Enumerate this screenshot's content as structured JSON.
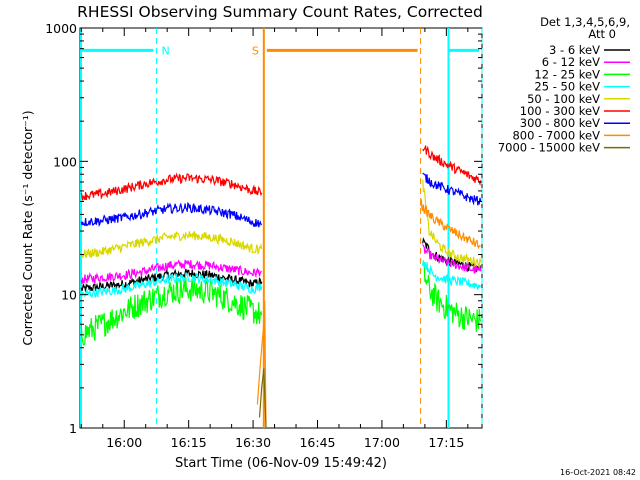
{
  "chart_data": {
    "type": "line",
    "title": "RHESSI Observing Summary Count Rates, Corrected",
    "xlabel": "Start Time (06-Nov-09 15:49:42)",
    "ylabel": "Corrected Count Rate (s⁻¹ detector⁻¹)",
    "x_ticks": [
      "16:00",
      "16:15",
      "16:30",
      "16:45",
      "17:00",
      "17:15"
    ],
    "x_tick_minutes": [
      0,
      15,
      30,
      45,
      60,
      75
    ],
    "x_range_minutes": [
      -10.3,
      83.3
    ],
    "y_scale": "log",
    "ylim": [
      1,
      1000
    ],
    "y_ticks": [
      1,
      10,
      100,
      1000
    ],
    "y_tick_labels": [
      "1",
      "10",
      "100",
      "1000"
    ],
    "legend_header": [
      "Det 1,3,4,5,6,9,",
      "Att 0"
    ],
    "legend_position": "right, outside plot",
    "footer_date": "16-Oct-2021 08:42",
    "annotations": [
      {
        "label": "N",
        "type": "night",
        "color": "#00ffff",
        "intervals_minutes": [
          [
            -10.3,
            7.5
          ],
          [
            75.5,
            83.3
          ]
        ],
        "level": 680
      },
      {
        "label": "S",
        "type": "saa",
        "color": "#ff8c00",
        "intervals_minutes": [
          [
            32.5,
            69.0
          ]
        ],
        "level": 680
      }
    ],
    "series": [
      {
        "name": "3 - 6 keV",
        "color": "#000000",
        "segments": [
          {
            "x": [
              -10,
              -5,
              0,
              5,
              10,
              15,
              20,
              25,
              30,
              32
            ],
            "y": [
              11,
              11.5,
              12,
              13,
              14,
              14.5,
              14,
              13,
              12,
              12.5
            ]
          },
          {
            "x": [
              69.5,
              72,
              75,
              78,
              81,
              83
            ],
            "y": [
              25,
              20,
              18,
              17,
              16,
              15.5
            ]
          }
        ]
      },
      {
        "name": "6 - 12 keV",
        "color": "#ff00ff",
        "segments": [
          {
            "x": [
              -10,
              -5,
              0,
              5,
              10,
              15,
              20,
              25,
              30,
              32
            ],
            "y": [
              13,
              13.5,
              14,
              15,
              16.5,
              17,
              16.5,
              15.5,
              14.5,
              15
            ]
          },
          {
            "x": [
              69.5,
              72,
              75,
              78,
              81,
              83
            ],
            "y": [
              22,
              19,
              17.5,
              16.5,
              15.5,
              15
            ]
          }
        ]
      },
      {
        "name": "12 - 25 keV",
        "color": "#00ff00",
        "segments": [
          {
            "x": [
              -10,
              -5,
              0,
              5,
              10,
              15,
              20,
              25,
              30,
              32
            ],
            "y": [
              5,
              6,
              7.5,
              9,
              10.5,
              11,
              10.5,
              9,
              7.5,
              7
            ]
          },
          {
            "x": [
              69.5,
              71,
              73,
              75,
              78,
              81,
              83
            ],
            "y": [
              15,
              11,
              9,
              8,
              7,
              6.5,
              6.3
            ]
          }
        ]
      },
      {
        "name": "25 - 50 keV",
        "color": "#00ffff",
        "segments": [
          {
            "x": [
              -10,
              -5,
              0,
              5,
              10,
              15,
              20,
              25,
              30,
              32
            ],
            "y": [
              10,
              10.5,
              11,
              12,
              13,
              13.5,
              13,
              12,
              11,
              11.5
            ]
          },
          {
            "x": [
              69.5,
              72,
              75,
              78,
              81,
              83
            ],
            "y": [
              18,
              14,
              13,
              12.5,
              12,
              11.5
            ]
          }
        ]
      },
      {
        "name": "50 - 100 keV",
        "color": "#d8d800",
        "segments": [
          {
            "x": [
              -10,
              -5,
              0,
              5,
              10,
              15,
              20,
              25,
              30,
              32
            ],
            "y": [
              20,
              21,
              23,
              25,
              27,
              28,
              27,
              25,
              22,
              22
            ]
          },
          {
            "x": [
              69.5,
              71,
              73,
              75,
              78,
              81,
              83
            ],
            "y": [
              70,
              30,
              24,
              21,
              19,
              18,
              17.5
            ]
          }
        ]
      },
      {
        "name": "100 - 300 keV",
        "color": "#ff0000",
        "segments": [
          {
            "x": [
              -10,
              -5,
              0,
              5,
              10,
              15,
              20,
              25,
              30,
              32
            ],
            "y": [
              55,
              57,
              62,
              68,
              73,
              75,
              73,
              68,
              60,
              58
            ]
          },
          {
            "x": [
              69.5,
              72,
              75,
              78,
              81,
              83
            ],
            "y": [
              128,
              108,
              95,
              85,
              76,
              72
            ]
          }
        ]
      },
      {
        "name": "300 - 800 keV",
        "color": "#0000ff",
        "segments": [
          {
            "x": [
              -10,
              -5,
              0,
              5,
              10,
              15,
              20,
              25,
              30,
              32
            ],
            "y": [
              35,
              36,
              38,
              41,
              44,
              45,
              43,
              40,
              35,
              34
            ]
          },
          {
            "x": [
              69.5,
              72,
              75,
              78,
              81,
              83
            ],
            "y": [
              78,
              68,
              62,
              57,
              52,
              50
            ]
          }
        ]
      },
      {
        "name": "800 - 7000 keV",
        "color": "#ff8c00",
        "segments": [
          {
            "x": [
              31.0,
              31.5,
              32.0,
              32.5,
              32.7,
              33.0
            ],
            "y": [
              1.5,
              2.5,
              4,
              6,
              9,
              1
            ]
          },
          {
            "x": [
              69.0,
              69.5,
              72,
              75,
              78,
              81,
              83
            ],
            "y": [
              50,
              45,
              37,
              32,
              28,
              25,
              23
            ]
          }
        ]
      },
      {
        "name": "7000 - 15000 keV",
        "color": "#7a6a00",
        "segments": [
          {
            "x": [
              31.5,
              32.0,
              32.5,
              33.0
            ],
            "y": [
              1.2,
              2.0,
              2.8,
              1.0
            ]
          }
        ]
      }
    ]
  }
}
